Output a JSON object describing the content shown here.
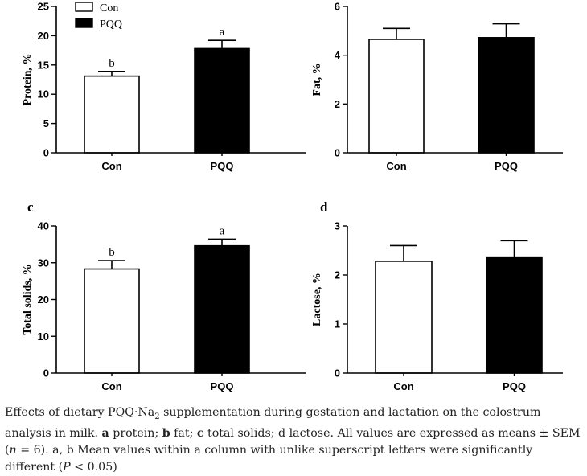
{
  "chart_data": [
    {
      "id": "a",
      "type": "bar",
      "panel_label": "",
      "ylabel": "Protein, %",
      "ylim": [
        0,
        25
      ],
      "yticks": [
        0,
        5,
        10,
        15,
        20,
        25
      ],
      "categories": [
        "Con",
        "PQQ"
      ],
      "values": [
        13.1,
        17.8
      ],
      "errors": [
        0.8,
        1.4
      ],
      "letters": [
        "b",
        "a"
      ],
      "fills": [
        "#ffffff",
        "#000000"
      ],
      "legend": [
        {
          "label": "Con",
          "fill": "#ffffff"
        },
        {
          "label": "PQQ",
          "fill": "#000000"
        }
      ]
    },
    {
      "id": "b",
      "type": "bar",
      "panel_label": "",
      "ylabel": "Fat, %",
      "ylim": [
        0,
        6
      ],
      "yticks": [
        0,
        2,
        4,
        6
      ],
      "categories": [
        "Con",
        "PQQ"
      ],
      "values": [
        4.65,
        4.72
      ],
      "errors": [
        0.45,
        0.57
      ],
      "letters": [
        "",
        ""
      ],
      "fills": [
        "#ffffff",
        "#000000"
      ],
      "legend": []
    },
    {
      "id": "c",
      "type": "bar",
      "panel_label": "c",
      "ylabel": "Total solids, %",
      "ylim": [
        0,
        40
      ],
      "yticks": [
        0,
        10,
        20,
        30,
        40
      ],
      "categories": [
        "Con",
        "PQQ"
      ],
      "values": [
        28.3,
        34.6
      ],
      "errors": [
        2.3,
        1.8
      ],
      "letters": [
        "b",
        "a"
      ],
      "fills": [
        "#ffffff",
        "#000000"
      ],
      "legend": []
    },
    {
      "id": "d",
      "type": "bar",
      "panel_label": "d",
      "ylabel": "Lactose, %",
      "ylim": [
        0,
        3
      ],
      "yticks": [
        0,
        1,
        2,
        3
      ],
      "categories": [
        "Con",
        "PQQ"
      ],
      "values": [
        2.28,
        2.35
      ],
      "errors": [
        0.32,
        0.35
      ],
      "letters": [
        "",
        ""
      ],
      "fills": [
        "#ffffff",
        "#000000"
      ],
      "legend": []
    }
  ],
  "caption": {
    "pre": "Effects of dietary PQQ·Na",
    "sub": "2",
    "mid1": " supplementation during gestation and lactation on the colostrum analysis in milk. ",
    "bold_a": "a",
    "t_a": " protein; ",
    "bold_b": "b",
    "t_b": " fat; ",
    "bold_c": "c",
    "t_c": " total solids; d lactose. All values are expressed as means ± SEM (",
    "n_label": "n",
    "n_val": " = 6). a, b Mean values within a column with unlike superscript letters were significantly different (",
    "p_label": "P",
    "p_val": " < 0.05)"
  }
}
